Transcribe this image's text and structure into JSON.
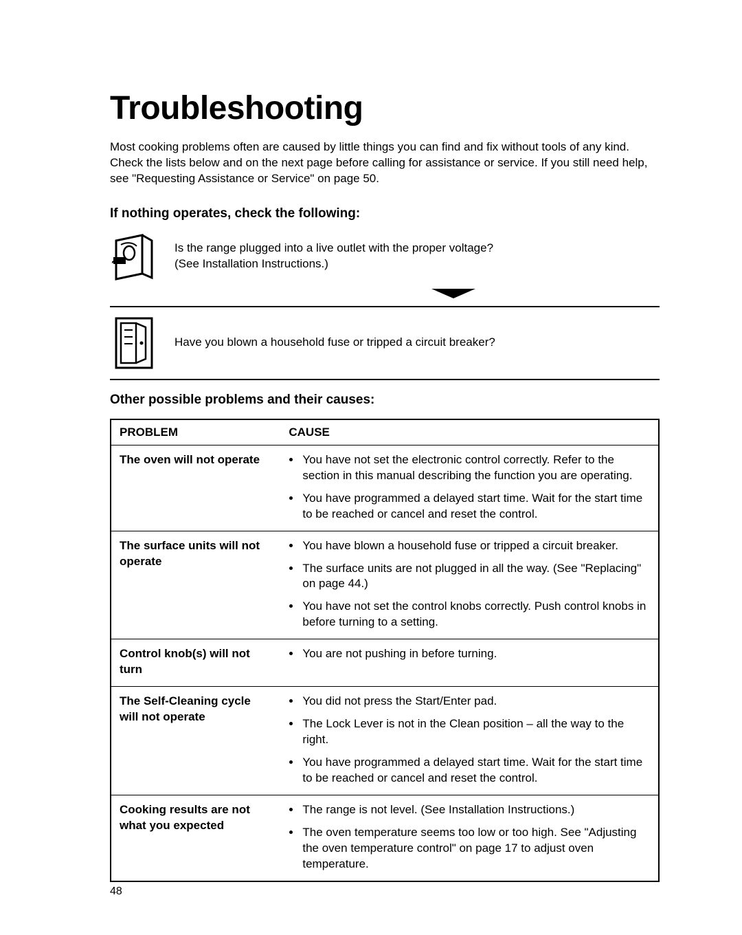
{
  "title": "Troubleshooting",
  "intro": "Most cooking problems often are caused by little things you can find and fix without tools of any kind. Check the lists below and on the next page before calling for assistance or service. If you still need help, see \"Requesting Assistance or Service\" on page 50.",
  "section1_head": "If nothing operates, check the following:",
  "check1": "Is the range plugged into a live outlet with the proper voltage?\n(See Installation Instructions.)",
  "check2": "Have you blown a household fuse or tripped a circuit breaker?",
  "section2_head": "Other possible problems and their causes:",
  "table": {
    "header_problem": "PROBLEM",
    "header_cause": "CAUSE",
    "rows": [
      {
        "problem": "The oven will not operate",
        "causes": [
          "You have not set the electronic control correctly. Refer to the section in this manual describing the function you are operating.",
          "You have programmed a delayed start time. Wait for the start time to be reached or cancel and reset the control."
        ]
      },
      {
        "problem": "The surface units will not operate",
        "causes": [
          "You have blown a household fuse or tripped a circuit breaker.",
          "The surface units are not plugged in all the way. (See \"Replacing\" on page 44.)",
          "You have not set the control knobs correctly. Push control knobs in before turning to a setting."
        ]
      },
      {
        "problem": "Control knob(s) will not turn",
        "causes": [
          "You are not pushing in before turning."
        ]
      },
      {
        "problem": "The Self-Cleaning cycle will not operate",
        "causes": [
          "You did not press the Start/Enter pad.",
          "The Lock Lever is not in the Clean position – all the way to the right.",
          "You have programmed a delayed start time. Wait for the start time to be reached or cancel and reset the control."
        ]
      },
      {
        "problem": "Cooking results are not what you expected",
        "causes": [
          "The range is not level. (See Installation Instructions.)",
          "The oven temperature seems too low or too high. See \"Adjusting the oven temperature control\" on page 17 to adjust oven temperature."
        ]
      }
    ]
  },
  "page_number": "48",
  "colors": {
    "text": "#000000",
    "background": "#ffffff",
    "border": "#000000"
  },
  "fonts": {
    "title_size_pt": 36,
    "body_size_pt": 12,
    "subhead_size_pt": 14
  }
}
